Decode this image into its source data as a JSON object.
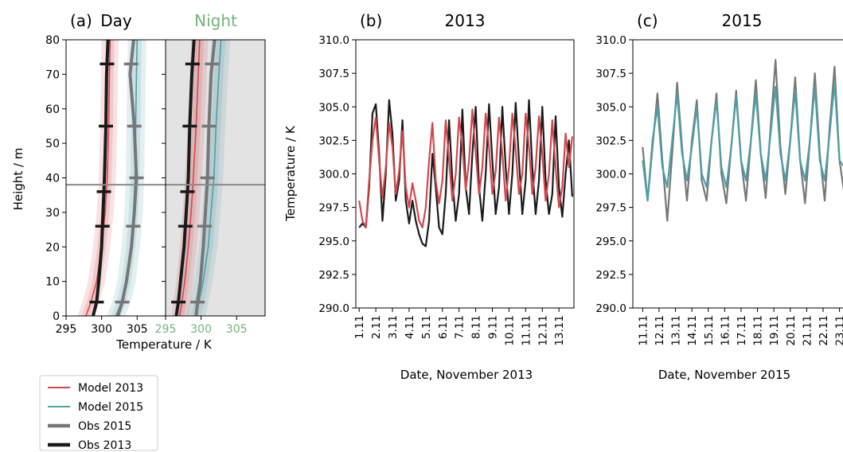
{
  "colors": {
    "model2013": "#d1484e",
    "model2015": "#4f9ea6",
    "obs2015": "#777777",
    "obs2013": "#1a1a1a",
    "night_title": "#73b57c",
    "night_bg": "#e3e3e3",
    "hline": "#8a8a8a"
  },
  "legend": [
    {
      "label": "Model 2013",
      "color": "#d1484e",
      "thick": false
    },
    {
      "label": "Model 2015",
      "color": "#4f9ea6",
      "thick": false
    },
    {
      "label": "Obs 2015",
      "color": "#777777",
      "thick": true
    },
    {
      "label": "Obs 2013",
      "color": "#1a1a1a",
      "thick": true
    }
  ],
  "chart_data": [
    {
      "type": "line",
      "panel_label": "(a)",
      "title": "Day",
      "xlabel": "Temperature / K",
      "ylabel": "Height / m",
      "xlim": [
        295,
        309
      ],
      "ylim": [
        0,
        80
      ],
      "xticks": [
        295,
        300,
        305
      ],
      "yticks": [
        0,
        10,
        20,
        30,
        40,
        50,
        60,
        70,
        80
      ],
      "hline": 38,
      "series": [
        {
          "name": "Model 2013",
          "x": [
            297.8,
            298.5,
            299.3,
            300.0,
            300.5,
            300.8,
            301.0,
            301.1,
            301.2
          ],
          "y": [
            0,
            4,
            10,
            20,
            30,
            40,
            55,
            70,
            80
          ],
          "band": 1.2
        },
        {
          "name": "Model 2015",
          "x": [
            302.0,
            302.8,
            303.5,
            304.1,
            304.5,
            304.7,
            304.8,
            304.9,
            305.0
          ],
          "y": [
            0,
            4,
            10,
            20,
            30,
            40,
            55,
            70,
            80
          ],
          "band": 1.3
        },
        {
          "name": "Obs 2015",
          "x": [
            302.3,
            302.9,
            303.5,
            304.2,
            304.6,
            304.9,
            304.6,
            304.0,
            304.5
          ],
          "y": [
            0,
            4,
            10,
            20,
            30,
            40,
            55,
            70,
            80
          ]
        },
        {
          "name": "Obs 2013",
          "x": [
            298.8,
            299.3,
            299.6,
            300.0,
            300.2,
            300.4,
            300.6,
            300.7,
            300.9
          ],
          "y": [
            0,
            4,
            10,
            20,
            30,
            40,
            55,
            70,
            80
          ]
        }
      ],
      "obs_markers": [
        {
          "series": "Obs 2013",
          "y": [
            4,
            26,
            36,
            55,
            73
          ]
        },
        {
          "series": "Obs 2015",
          "y": [
            4,
            26,
            40,
            55,
            73
          ]
        }
      ]
    },
    {
      "type": "line",
      "title": "Night",
      "xlim": [
        295,
        309
      ],
      "ylim": [
        0,
        80
      ],
      "xticks": [
        295,
        300,
        305
      ],
      "hline": 38,
      "series": [
        {
          "name": "Model 2013",
          "x": [
            297.0,
            297.3,
            297.7,
            298.2,
            298.6,
            298.9,
            299.3,
            299.6,
            299.8
          ],
          "y": [
            0,
            4,
            10,
            20,
            30,
            40,
            55,
            70,
            80
          ],
          "band": 1.2
        },
        {
          "name": "Model 2015",
          "x": [
            299.3,
            299.7,
            300.3,
            301.0,
            301.4,
            301.8,
            302.1,
            302.5,
            302.8
          ],
          "y": [
            0,
            4,
            10,
            20,
            30,
            40,
            55,
            70,
            80
          ],
          "band": 1.3
        },
        {
          "name": "Obs 2015",
          "x": [
            299.3,
            299.5,
            299.9,
            300.3,
            300.6,
            300.9,
            301.1,
            301.4,
            301.9
          ],
          "y": [
            0,
            4,
            10,
            20,
            30,
            40,
            55,
            70,
            80
          ]
        },
        {
          "name": "Obs 2013",
          "x": [
            296.5,
            296.8,
            297.1,
            297.6,
            297.9,
            298.2,
            298.4,
            298.7,
            299.0
          ],
          "y": [
            0,
            4,
            10,
            20,
            30,
            40,
            55,
            70,
            80
          ]
        }
      ],
      "obs_markers": [
        {
          "series": "Obs 2013",
          "y": [
            4,
            26,
            36,
            55,
            73
          ]
        },
        {
          "series": "Obs 2015",
          "y": [
            4,
            26,
            40,
            55,
            73
          ]
        }
      ]
    },
    {
      "type": "line",
      "panel_label": "(b)",
      "title": "2013",
      "xlabel": "Date, November 2013",
      "ylabel": "Temperature / K",
      "xlim": [
        0.8,
        13.9
      ],
      "ylim": [
        290,
        310
      ],
      "yticks": [
        "290.0",
        "292.5",
        "295.0",
        "297.5",
        "300.0",
        "302.5",
        "305.0",
        "307.5",
        "310.0"
      ],
      "xticks": [
        1,
        2,
        3,
        4,
        5,
        6,
        7,
        8,
        9,
        10,
        11,
        12,
        13
      ],
      "xticklabels": [
        "1.11",
        "2.11",
        "3.11",
        "4.11",
        "5.11",
        "6.11",
        "7.11",
        "8.11",
        "9.11",
        "10.11",
        "11.11",
        "12.11",
        "13.11"
      ],
      "series": [
        {
          "name": "Model 2013",
          "x": [
            1.0,
            1.2,
            1.4,
            1.6,
            1.8,
            2.0,
            2.2,
            2.4,
            2.6,
            2.8,
            3.0,
            3.2,
            3.4,
            3.6,
            3.8,
            4.0,
            4.2,
            4.4,
            4.6,
            4.8,
            5.0,
            5.2,
            5.4,
            5.6,
            5.8,
            6.0,
            6.2,
            6.4,
            6.6,
            6.8,
            7.0,
            7.2,
            7.4,
            7.6,
            7.8,
            8.0,
            8.2,
            8.4,
            8.6,
            8.8,
            9.0,
            9.2,
            9.4,
            9.6,
            9.8,
            10.0,
            10.2,
            10.4,
            10.6,
            10.8,
            11.0,
            11.2,
            11.4,
            11.6,
            11.8,
            12.0,
            12.2,
            12.4,
            12.6,
            12.8,
            13.0,
            13.2,
            13.4,
            13.6,
            13.8
          ],
          "y": [
            298.0,
            296.5,
            296.0,
            299.5,
            302.5,
            304.2,
            301.0,
            298.2,
            300.5,
            303.8,
            302.0,
            298.5,
            300.2,
            303.2,
            299.0,
            297.5,
            299.3,
            298.0,
            296.5,
            296.0,
            297.5,
            301.0,
            303.8,
            299.5,
            297.8,
            299.5,
            304.0,
            301.0,
            298.0,
            300.0,
            304.2,
            302.0,
            298.8,
            301.0,
            304.8,
            301.5,
            298.5,
            300.5,
            304.5,
            302.0,
            298.5,
            300.2,
            304.2,
            301.5,
            298.0,
            300.5,
            304.5,
            301.8,
            298.5,
            300.0,
            304.5,
            302.0,
            298.5,
            300.5,
            304.3,
            301.5,
            298.0,
            300.0,
            304.0,
            300.5,
            297.5,
            299.0,
            303.0,
            300.5,
            302.8
          ]
        },
        {
          "name": "Obs 2013",
          "x": [
            1.0,
            1.2,
            1.4,
            1.6,
            1.8,
            2.0,
            2.2,
            2.4,
            2.6,
            2.8,
            3.0,
            3.2,
            3.4,
            3.6,
            3.8,
            4.0,
            4.2,
            4.4,
            4.6,
            4.8,
            5.0,
            5.2,
            5.4,
            5.6,
            5.8,
            6.0,
            6.2,
            6.4,
            6.6,
            6.8,
            7.0,
            7.2,
            7.4,
            7.6,
            7.8,
            8.0,
            8.2,
            8.4,
            8.6,
            8.8,
            9.0,
            9.2,
            9.4,
            9.6,
            9.8,
            10.0,
            10.2,
            10.4,
            10.6,
            10.8,
            11.0,
            11.2,
            11.4,
            11.6,
            11.8,
            12.0,
            12.2,
            12.4,
            12.6,
            12.8,
            13.0,
            13.2,
            13.4,
            13.6,
            13.8
          ],
          "y": [
            296.0,
            296.3,
            296.0,
            299.0,
            304.5,
            305.2,
            301.5,
            296.5,
            300.0,
            305.5,
            303.0,
            298.0,
            299.5,
            304.0,
            298.0,
            296.3,
            298.0,
            296.5,
            295.5,
            294.8,
            294.6,
            296.5,
            301.5,
            299.0,
            296.0,
            295.5,
            298.5,
            304.0,
            299.5,
            296.5,
            298.5,
            304.8,
            299.0,
            297.0,
            301.5,
            305.0,
            299.0,
            296.5,
            300.0,
            305.2,
            301.0,
            297.0,
            299.0,
            305.0,
            300.5,
            297.0,
            300.0,
            305.3,
            301.0,
            297.0,
            299.5,
            305.5,
            300.5,
            297.0,
            299.5,
            305.0,
            299.5,
            297.0,
            298.5,
            304.3,
            299.0,
            296.8,
            300.0,
            302.5,
            298.3
          ]
        }
      ]
    },
    {
      "type": "line",
      "panel_label": "(c)",
      "title": "2015",
      "xlabel": "Date, November 2015",
      "xlim": [
        10.4,
        23.7
      ],
      "ylim": [
        290,
        310
      ],
      "yticks": [
        "290.0",
        "292.5",
        "295.0",
        "297.5",
        "300.0",
        "302.5",
        "305.0",
        "307.5",
        "310.0"
      ],
      "xticks": [
        11,
        12,
        13,
        14,
        15,
        16,
        17,
        18,
        19,
        20,
        21,
        22,
        23
      ],
      "xticklabels": [
        "11.11",
        "12.11",
        "13.11",
        "14.11",
        "15.11",
        "16.11",
        "17.11",
        "18.11",
        "19.11",
        "20.11",
        "21.11",
        "22.11",
        "23.11"
      ],
      "series": [
        {
          "name": "Obs 2015",
          "x": [
            11.0,
            11.3,
            11.6,
            11.9,
            12.2,
            12.5,
            12.8,
            13.1,
            13.4,
            13.7,
            14.0,
            14.3,
            14.6,
            14.9,
            15.2,
            15.5,
            15.8,
            16.1,
            16.4,
            16.7,
            17.0,
            17.3,
            17.6,
            17.9,
            18.2,
            18.5,
            18.8,
            19.1,
            19.4,
            19.7,
            20.0,
            20.3,
            20.6,
            20.9,
            21.2,
            21.5,
            21.8,
            22.1,
            22.4,
            22.7,
            23.0,
            23.3,
            23.6
          ],
          "y": [
            302.0,
            298.0,
            302.0,
            306.0,
            301.0,
            296.5,
            301.5,
            306.8,
            302.0,
            298.0,
            302.5,
            305.5,
            299.5,
            298.0,
            302.5,
            306.0,
            300.0,
            297.8,
            302.0,
            306.2,
            301.0,
            298.0,
            302.5,
            307.0,
            301.5,
            298.2,
            303.5,
            308.5,
            302.0,
            298.5,
            302.5,
            307.2,
            301.0,
            297.8,
            302.5,
            307.5,
            301.5,
            298.0,
            303.5,
            308.0,
            301.0,
            298.5,
            308.5
          ]
        },
        {
          "name": "Model 2015",
          "x": [
            11.0,
            11.3,
            11.6,
            11.9,
            12.2,
            12.5,
            12.8,
            13.1,
            13.4,
            13.7,
            14.0,
            14.3,
            14.6,
            14.9,
            15.2,
            15.5,
            15.8,
            16.1,
            16.4,
            16.7,
            17.0,
            17.3,
            17.6,
            17.9,
            18.2,
            18.5,
            18.8,
            19.1,
            19.4,
            19.7,
            20.0,
            20.3,
            20.6,
            20.9,
            21.2,
            21.5,
            21.8,
            22.1,
            22.4,
            22.7,
            23.0,
            23.3,
            23.6
          ],
          "y": [
            301.0,
            298.0,
            302.5,
            305.0,
            300.5,
            299.0,
            302.5,
            306.0,
            301.5,
            299.5,
            302.0,
            305.0,
            300.0,
            299.0,
            302.5,
            305.5,
            300.5,
            299.0,
            302.0,
            305.8,
            301.0,
            299.5,
            302.5,
            306.0,
            301.5,
            299.5,
            303.0,
            306.5,
            301.5,
            299.5,
            302.5,
            306.2,
            301.0,
            299.5,
            302.5,
            306.5,
            301.0,
            299.5,
            303.0,
            306.8,
            301.0,
            300.5,
            307.5
          ]
        }
      ]
    }
  ]
}
